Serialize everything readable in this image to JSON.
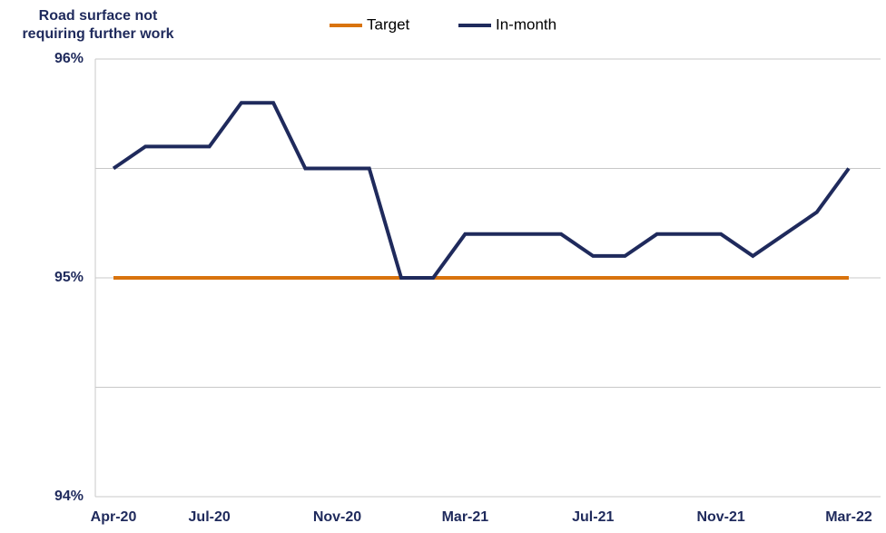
{
  "chart_data": {
    "type": "line",
    "title": [
      "Road surface not",
      "requiring further work"
    ],
    "categories": [
      "Apr-20",
      null,
      null,
      "Jul-20",
      null,
      null,
      null,
      "Nov-20",
      null,
      null,
      null,
      "Mar-21",
      null,
      null,
      null,
      "Jul-21",
      null,
      null,
      null,
      "Nov-21",
      null,
      null,
      null,
      "Mar-22"
    ],
    "series": [
      {
        "name": "Target",
        "color": "#d9730d",
        "values": [
          95,
          95,
          95,
          95,
          95,
          95,
          95,
          95,
          95,
          95,
          95,
          95,
          95,
          95,
          95,
          95,
          95,
          95,
          95,
          95,
          95,
          95,
          95,
          95
        ]
      },
      {
        "name": "In-month",
        "color": "#1f2a5c",
        "values": [
          95.5,
          95.6,
          95.6,
          95.6,
          95.8,
          95.8,
          95.5,
          95.5,
          95.5,
          95.0,
          95.0,
          95.2,
          95.2,
          95.2,
          95.2,
          95.1,
          95.1,
          95.2,
          95.2,
          95.2,
          95.1,
          95.2,
          95.3,
          95.5
        ]
      }
    ],
    "ylim": [
      94,
      96
    ],
    "yticks": [
      {
        "value": 94,
        "label": "94%"
      },
      {
        "value": 95,
        "label": "95%"
      },
      {
        "value": 96,
        "label": "96%"
      }
    ],
    "minor_yticks": [
      94.5,
      95.5
    ],
    "grid": true,
    "legend": "top"
  }
}
